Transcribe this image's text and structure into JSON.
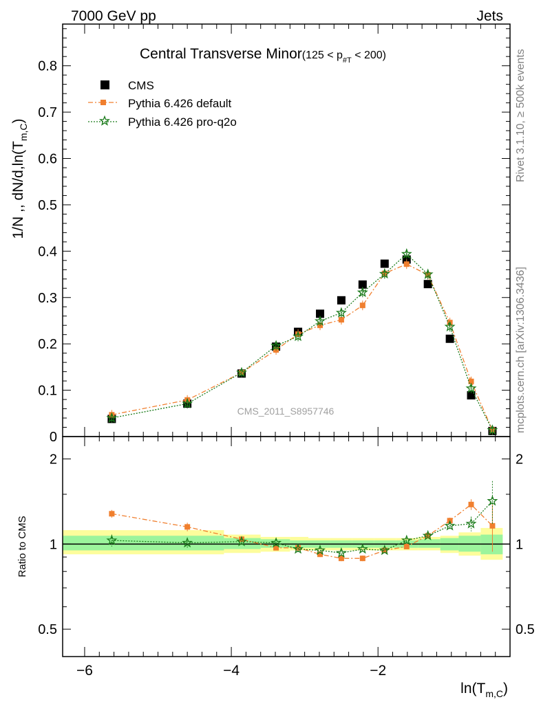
{
  "header": {
    "left": "7000 GeV pp",
    "right": "Jets"
  },
  "side_text": {
    "rivet": "Rivet 3.1.10, ≥ 500k events",
    "mcplots": "mcplots.cern.ch [arXiv:1306.3436]"
  },
  "watermark": "CMS_2011_S8957746",
  "chart_data": [
    {
      "type": "scatter",
      "panel": "main",
      "title": "Central Transverse Minor",
      "title_cut": "(125 < p",
      "title_cut_sub": "#T",
      "title_cut_end": " < 200)",
      "ylabel": "1/N ,, dN/d,ln(T",
      "ylabel_sub": "m,C",
      "ylabel_end": ")",
      "xlim": [
        -6.3,
        -0.2
      ],
      "ylim": [
        0,
        0.89
      ],
      "yticks": [
        "0",
        "0.1",
        "0.2",
        "0.3",
        "0.4",
        "0.5",
        "0.6",
        "0.7",
        "0.8"
      ],
      "legend_position": "top-left",
      "legend": [
        "CMS",
        "Pythia 6.426 default",
        "Pythia 6.426 pro-q2o"
      ],
      "series": [
        {
          "name": "CMS",
          "color": "#000000",
          "marker": "square",
          "x": [
            -5.63,
            -4.6,
            -3.86,
            -3.39,
            -3.09,
            -2.79,
            -2.5,
            -2.21,
            -1.91,
            -1.61,
            -1.32,
            -1.02,
            -0.73,
            -0.44
          ],
          "y": [
            0.038,
            0.071,
            0.136,
            0.194,
            0.226,
            0.265,
            0.294,
            0.328,
            0.373,
            0.382,
            0.329,
            0.211,
            0.089,
            0.012
          ]
        },
        {
          "name": "Pythia 6.426 default",
          "color": "#f07f2e",
          "marker": "filled-square",
          "line": "dash-dot",
          "x": [
            -5.63,
            -4.6,
            -3.86,
            -3.39,
            -3.09,
            -2.79,
            -2.5,
            -2.21,
            -1.91,
            -1.61,
            -1.32,
            -1.02,
            -0.73,
            -0.44
          ],
          "y": [
            0.047,
            0.079,
            0.138,
            0.187,
            0.221,
            0.24,
            0.252,
            0.283,
            0.352,
            0.372,
            0.349,
            0.246,
            0.119,
            0.014
          ]
        },
        {
          "name": "Pythia 6.426 pro-q2o",
          "color": "#1a7a1a",
          "marker": "star",
          "line": "dotted",
          "x": [
            -5.63,
            -4.6,
            -3.86,
            -3.39,
            -3.09,
            -2.79,
            -2.5,
            -2.21,
            -1.91,
            -1.61,
            -1.32,
            -1.02,
            -0.73,
            -0.44
          ],
          "y": [
            0.04,
            0.071,
            0.138,
            0.196,
            0.216,
            0.249,
            0.267,
            0.311,
            0.351,
            0.394,
            0.35,
            0.237,
            0.104,
            0.014
          ]
        }
      ]
    },
    {
      "type": "scatter",
      "panel": "ratio",
      "ylabel": "Ratio to CMS",
      "xlabel": "ln(T",
      "xlabel_sub": "m,C",
      "xlabel_end": ")",
      "xlim": [
        -6.3,
        -0.2
      ],
      "ylim": [
        0.4,
        2.4
      ],
      "log_y": true,
      "yticks": [
        "0.5",
        "1",
        "2"
      ],
      "xticks": [
        "−6",
        "−4",
        "−2"
      ],
      "bands": {
        "edges": [
          -6.3,
          -4.1,
          -3.6,
          -3.2,
          -2.95,
          -2.65,
          -2.35,
          -2.05,
          -1.75,
          -1.45,
          -1.15,
          -0.9,
          -0.6,
          -0.3
        ],
        "yellow": [
          [
            0.92,
            1.12
          ],
          [
            0.93,
            1.08
          ],
          [
            0.94,
            1.06
          ],
          [
            0.95,
            1.06
          ],
          [
            0.95,
            1.05
          ],
          [
            0.95,
            1.05
          ],
          [
            0.95,
            1.05
          ],
          [
            0.95,
            1.05
          ],
          [
            0.95,
            1.05
          ],
          [
            0.95,
            1.06
          ],
          [
            0.93,
            1.07
          ],
          [
            0.91,
            1.1
          ],
          [
            0.88,
            1.14
          ]
        ],
        "green": [
          [
            0.95,
            1.07
          ],
          [
            0.96,
            1.05
          ],
          [
            0.97,
            1.04
          ],
          [
            0.97,
            1.03
          ],
          [
            0.97,
            1.03
          ],
          [
            0.97,
            1.03
          ],
          [
            0.97,
            1.03
          ],
          [
            0.97,
            1.03
          ],
          [
            0.97,
            1.03
          ],
          [
            0.97,
            1.04
          ],
          [
            0.95,
            1.05
          ],
          [
            0.94,
            1.07
          ],
          [
            0.92,
            1.08
          ]
        ]
      },
      "series": [
        {
          "name": "Pythia 6.426 default",
          "color": "#f07f2e",
          "x": [
            -5.63,
            -4.6,
            -3.86,
            -3.39,
            -3.09,
            -2.79,
            -2.5,
            -2.21,
            -1.91,
            -1.61,
            -1.32,
            -1.02,
            -0.73,
            -0.44
          ],
          "y": [
            1.28,
            1.15,
            1.04,
            0.97,
            0.97,
            0.92,
            0.89,
            0.89,
            0.95,
            0.98,
            1.07,
            1.21,
            1.38,
            1.16
          ],
          "err": [
            0.04,
            0.04,
            0.02,
            0.02,
            0.02,
            0.02,
            0.02,
            0.02,
            0.01,
            0.01,
            0.02,
            0.03,
            0.06,
            0.22
          ]
        },
        {
          "name": "Pythia 6.426 pro-q2o",
          "color": "#1a7a1a",
          "x": [
            -5.63,
            -4.6,
            -3.86,
            -3.39,
            -3.09,
            -2.79,
            -2.5,
            -2.21,
            -1.91,
            -1.61,
            -1.32,
            -1.02,
            -0.73,
            -0.44
          ],
          "y": [
            1.03,
            1.01,
            1.02,
            1.01,
            0.96,
            0.95,
            0.93,
            0.96,
            0.95,
            1.03,
            1.07,
            1.16,
            1.18,
            1.42
          ],
          "err": [
            0.05,
            0.04,
            0.02,
            0.03,
            0.03,
            0.02,
            0.02,
            0.02,
            0.01,
            0.02,
            0.02,
            0.03,
            0.07,
            0.25
          ]
        }
      ]
    }
  ]
}
